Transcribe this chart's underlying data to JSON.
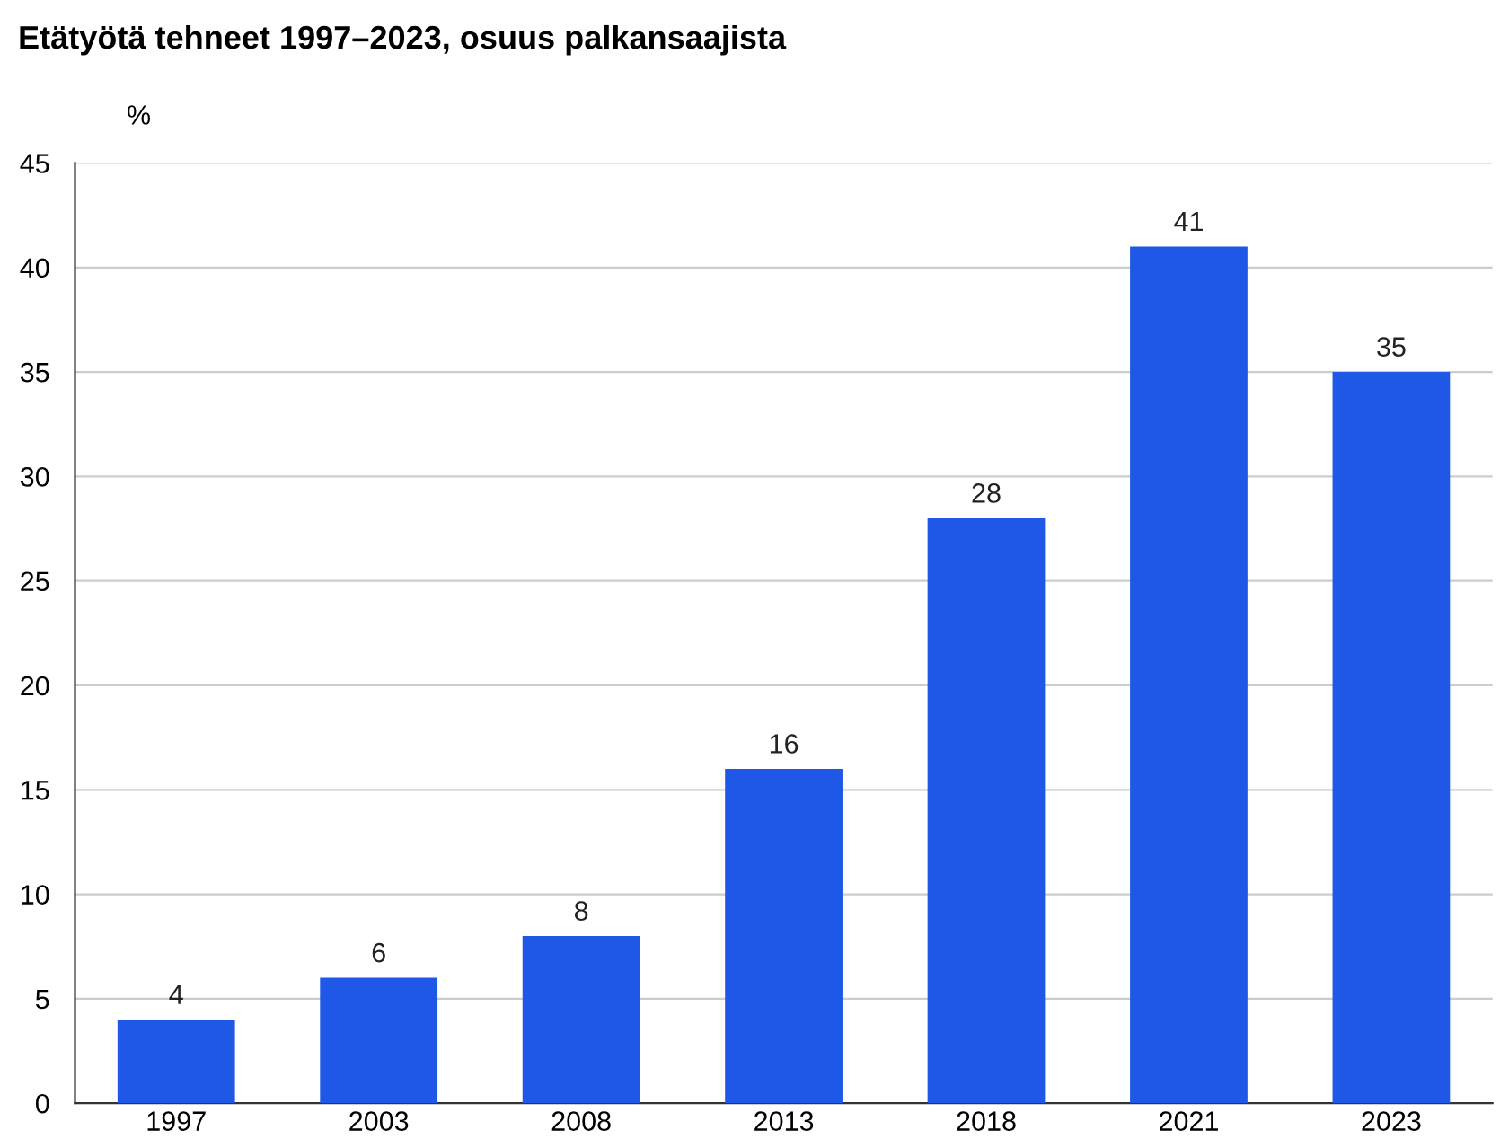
{
  "chart_data": {
    "type": "bar",
    "title": "Etätyötä tehneet 1997–2023, osuus palkansaajista",
    "ylabel": "%",
    "categories": [
      "1997",
      "2003",
      "2008",
      "2013",
      "2018",
      "2021",
      "2023"
    ],
    "values": [
      4,
      6,
      8,
      16,
      28,
      41,
      35
    ],
    "color": "#1f58e6",
    "ylim": [
      0,
      45
    ],
    "yticks": [
      0,
      5,
      10,
      15,
      20,
      25,
      30,
      35,
      40,
      45
    ],
    "grid": "y",
    "data_labels": true
  }
}
